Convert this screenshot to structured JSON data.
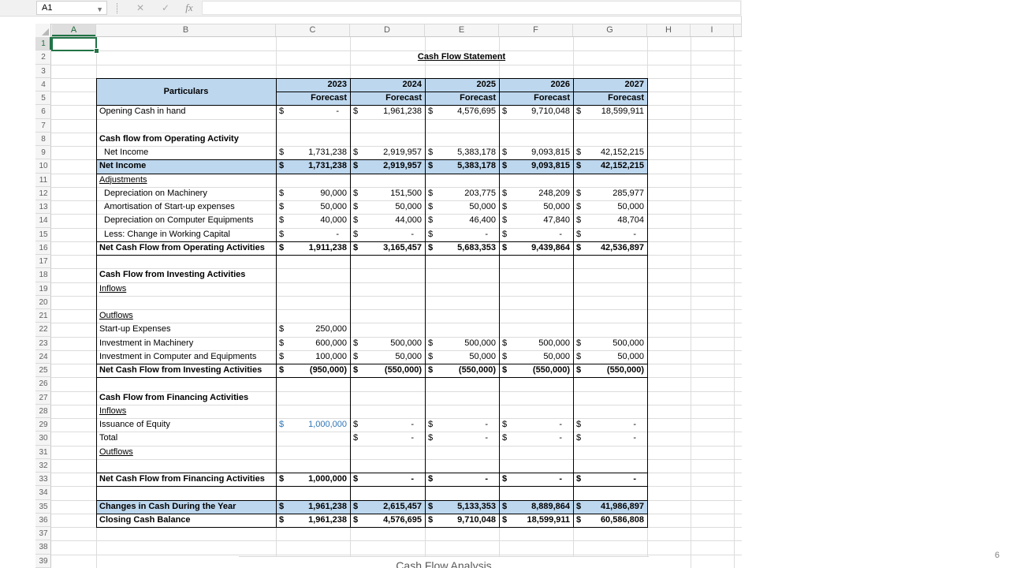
{
  "formula_bar": {
    "name_box": "A1",
    "cancel_label": "✕",
    "enter_label": "✓",
    "fx_label": "fx",
    "formula_value": ""
  },
  "columns": [
    "A",
    "B",
    "C",
    "D",
    "E",
    "F",
    "G",
    "H",
    "I"
  ],
  "rows_visible": 39,
  "title": "Cash Flow Statement",
  "currency_symbol": "$",
  "selection": {
    "cell": "A1"
  },
  "table": {
    "header": {
      "particulars": "Particulars",
      "years": [
        "2023",
        "2024",
        "2025",
        "2026",
        "2027"
      ],
      "forecast_label": "Forecast"
    },
    "rows": [
      {
        "n": 6,
        "label": "Opening Cash in hand",
        "values": [
          "-",
          "1,961,238",
          "4,576,695",
          "9,710,048",
          "18,599,911"
        ]
      },
      {
        "n": 8,
        "label": "Cash flow from Operating Activity",
        "bold": true
      },
      {
        "n": 9,
        "label": "Net Income",
        "indent": true,
        "values": [
          "1,731,238",
          "2,919,957",
          "5,383,178",
          "9,093,815",
          "42,152,215"
        ]
      },
      {
        "n": 10,
        "label": "Net Income",
        "bold": true,
        "fill": true,
        "values": [
          "1,731,238",
          "2,919,957",
          "5,383,178",
          "9,093,815",
          "42,152,215"
        ]
      },
      {
        "n": 11,
        "label": "Adjustments",
        "underline": true
      },
      {
        "n": 12,
        "label": "Depreciation on Machinery",
        "indent": true,
        "values": [
          "90,000",
          "151,500",
          "203,775",
          "248,209",
          "285,977"
        ]
      },
      {
        "n": 13,
        "label": "Amortisation of Start-up expenses",
        "indent": true,
        "values": [
          "50,000",
          "50,000",
          "50,000",
          "50,000",
          "50,000"
        ]
      },
      {
        "n": 14,
        "label": "Depreciation on Computer Equipments",
        "indent": true,
        "values": [
          "40,000",
          "44,000",
          "46,400",
          "47,840",
          "48,704"
        ]
      },
      {
        "n": 15,
        "label": "Less: Change in Working Capital",
        "indent": true,
        "values": [
          "-",
          "-",
          "-",
          "-",
          "-"
        ]
      },
      {
        "n": 16,
        "label": "Net Cash Flow from Operating Activities",
        "bold": true,
        "values": [
          "1,911,238",
          "3,165,457",
          "5,683,353",
          "9,439,864",
          "42,536,897"
        ]
      },
      {
        "n": 18,
        "label": "Cash Flow from Investing Activities",
        "bold": true
      },
      {
        "n": 19,
        "label": "Inflows",
        "underline": true
      },
      {
        "n": 21,
        "label": "Outflows",
        "underline": true
      },
      {
        "n": 22,
        "label": "Start-up Expenses",
        "values": [
          "250,000",
          null,
          null,
          null,
          null
        ]
      },
      {
        "n": 23,
        "label": "Investment in Machinery",
        "values": [
          "600,000",
          "500,000",
          "500,000",
          "500,000",
          "500,000"
        ]
      },
      {
        "n": 24,
        "label": "Investment in Computer and Equipments",
        "values": [
          "100,000",
          "50,000",
          "50,000",
          "50,000",
          "50,000"
        ]
      },
      {
        "n": 25,
        "label": "Net Cash Flow from Investing Activities",
        "bold": true,
        "values": [
          "(950,000)",
          "(550,000)",
          "(550,000)",
          "(550,000)",
          "(550,000)"
        ]
      },
      {
        "n": 27,
        "label": "Cash Flow from Financing Activities",
        "bold": true
      },
      {
        "n": 28,
        "label": "Inflows",
        "underline": true
      },
      {
        "n": 29,
        "label": "Issuance of Equity",
        "values": [
          "1,000,000",
          "-",
          "-",
          "-",
          "-"
        ],
        "blue_value_cols": [
          0
        ]
      },
      {
        "n": 30,
        "label": "Total",
        "values": [
          null,
          "-",
          "-",
          "-",
          "-"
        ]
      },
      {
        "n": 31,
        "label": "Outflows",
        "underline": true
      },
      {
        "n": 33,
        "label": "Net Cash Flow from Financing Activities",
        "bold": true,
        "values": [
          "1,000,000",
          "-",
          "-",
          "-",
          "-"
        ]
      },
      {
        "n": 35,
        "label": "Changes in Cash During the Year",
        "bold": true,
        "fill": true,
        "values": [
          "1,961,238",
          "2,615,457",
          "5,133,353",
          "8,889,864",
          "41,986,897"
        ]
      },
      {
        "n": 36,
        "label": "Closing Cash Balance",
        "bold": true,
        "values": [
          "1,961,238",
          "4,576,695",
          "9,710,048",
          "18,599,911",
          "60,586,808"
        ]
      }
    ]
  },
  "chart_fragment": {
    "title": "Cash Flow Analysis"
  },
  "page_number": "6",
  "colors": {
    "header_fill": "#BDD7EE",
    "selection_border": "#217346",
    "input_text": "#2E75B6"
  }
}
